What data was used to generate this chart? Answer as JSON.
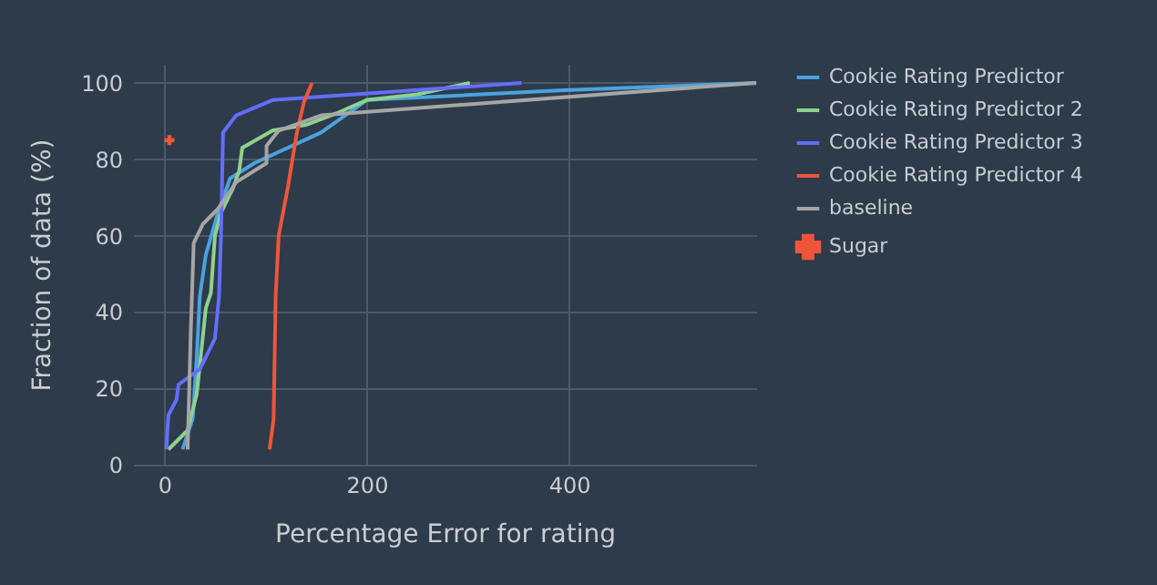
{
  "chart_data": {
    "type": "line",
    "xlabel": "Percentage Error for rating",
    "ylabel": "Fraction of data (%)",
    "xlim": [
      -31,
      585
    ],
    "ylim": [
      0,
      105
    ],
    "xticks": [
      0,
      200,
      400
    ],
    "yticks": [
      0,
      20,
      40,
      60,
      80,
      100
    ],
    "grid": true,
    "legend": "top right",
    "line_style": "solid",
    "series": [
      {
        "name": "Cookie Rating Predictor",
        "color": "#4aa3df",
        "marker": "none",
        "x": [
          18,
          28,
          32,
          35,
          41,
          53,
          65,
          89,
          155,
          200,
          390,
          585
        ],
        "values": [
          4,
          12,
          28,
          44,
          55,
          66,
          75,
          79,
          87,
          95.5,
          98,
          100
        ]
      },
      {
        "name": "Cookie Rating Predictor 2",
        "color": "#8fd18f",
        "marker": "none",
        "x": [
          4,
          23,
          32,
          41,
          46,
          50,
          56,
          68,
          74,
          77,
          107,
          140,
          170,
          200,
          250,
          302
        ],
        "values": [
          4,
          9,
          18.5,
          41,
          45,
          60,
          66,
          72.5,
          77,
          83,
          87.5,
          89,
          92,
          95.5,
          97,
          100
        ]
      },
      {
        "name": "Cookie Rating Predictor 3",
        "color": "#636efa",
        "marker": "none",
        "x": [
          2,
          4,
          12,
          14,
          35,
          50,
          54,
          56,
          58,
          71,
          107,
          353
        ],
        "values": [
          4,
          13,
          17,
          21,
          25,
          33,
          44,
          60,
          87,
          91.5,
          95.5,
          100
        ]
      },
      {
        "name": "Cookie Rating Predictor 4",
        "color": "#ef553b",
        "marker": "none",
        "x": [
          104,
          108,
          110,
          113,
          122,
          131,
          138,
          146
        ],
        "values": [
          4,
          12,
          44,
          60,
          72.5,
          87,
          95,
          100
        ]
      },
      {
        "name": "baseline",
        "color": "#a6a6a6",
        "marker": "none",
        "x": [
          23,
          26,
          29,
          38,
          53,
          71,
          101,
          101,
          113,
          155,
          585
        ],
        "values": [
          4,
          34,
          58,
          63,
          67,
          74,
          79,
          83.5,
          87.5,
          91.5,
          100
        ]
      },
      {
        "name": "Sugar",
        "color": "#ef553b",
        "type": "scatter",
        "marker": "cross",
        "x": [
          5
        ],
        "values": [
          85
        ]
      }
    ]
  }
}
